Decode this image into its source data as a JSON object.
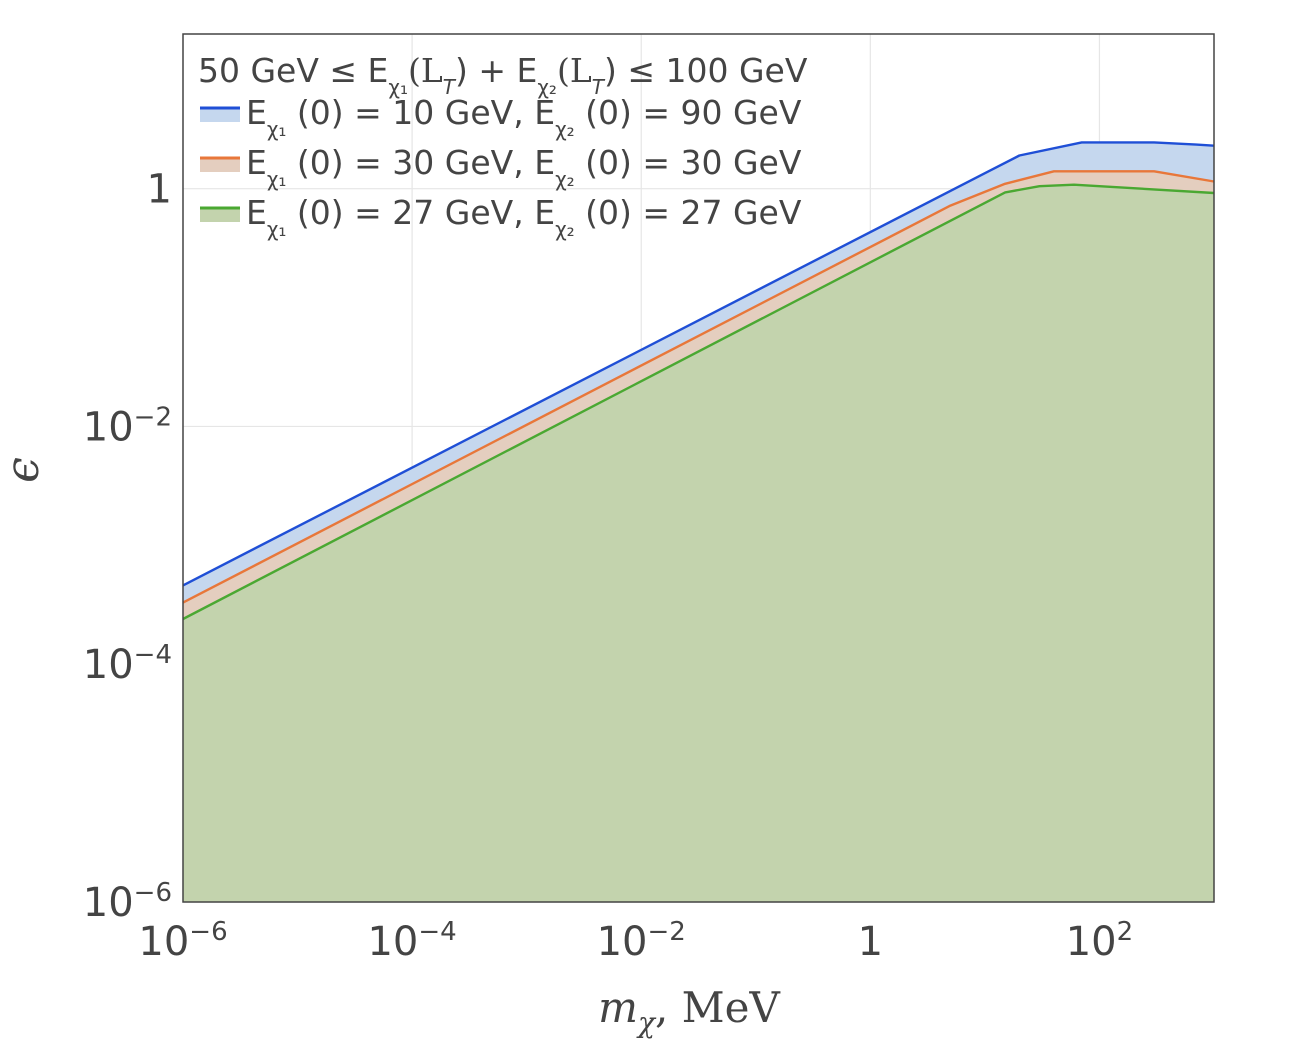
{
  "chart_data": {
    "type": "area",
    "title": "",
    "xlabel": "m_χ, MeV",
    "xlabel_parts": {
      "symbol": "m",
      "sub": "χ",
      "rest": ", MeV"
    },
    "ylabel": "ϵ",
    "x_scale": "log",
    "y_scale": "log",
    "xlim": [
      1e-06,
      1000
    ],
    "ylim": [
      1e-06,
      20
    ],
    "grid": true,
    "x_ticks": [
      {
        "value": 1e-06,
        "base": "10",
        "exp": "−6"
      },
      {
        "value": 0.0001,
        "base": "10",
        "exp": "−4"
      },
      {
        "value": 0.01,
        "base": "10",
        "exp": "−2"
      },
      {
        "value": 1,
        "base": "1",
        "exp": ""
      },
      {
        "value": 100,
        "base": "10",
        "exp": "2"
      }
    ],
    "y_ticks": [
      {
        "value": 1e-06,
        "base": "10",
        "exp": "−6"
      },
      {
        "value": 0.0001,
        "base": "10",
        "exp": "−4"
      },
      {
        "value": 0.01,
        "base": "10",
        "exp": "−2"
      },
      {
        "value": 1,
        "base": "1",
        "exp": ""
      }
    ],
    "legend": {
      "position": "top-left",
      "title_parts": {
        "prefix": "50 GeV ≤ E",
        "sub1": "χ₁",
        "mid1": "(L",
        "mid1_sub": "T",
        "mid1_end": ") + E",
        "sub2": "χ₂",
        "mid2": "(L",
        "mid2_sub": "T",
        "mid2_end": ") ≤ 100 GeV"
      }
    },
    "series": [
      {
        "name": "E_χ1 (0) = 10 GeV, E_χ2 (0) = 90 GeV",
        "label_parts": {
          "a": "E",
          "a_sub": "χ₁",
          "b": " (0) = 10 GeV, E",
          "b_sub": "χ₂",
          "c": " (0) = 90 GeV"
        },
        "color": "#1f4fd6",
        "fill": "#c5d7ee",
        "x": [
          1e-06,
          10,
          20,
          70,
          300,
          700,
          1000
        ],
        "y": [
          0.00046,
          1.35,
          1.9,
          2.45,
          2.45,
          2.35,
          2.3
        ]
      },
      {
        "name": "E_χ1 (0) = 30 GeV, E_χ2 (0) = 30 GeV",
        "label_parts": {
          "a": "E",
          "a_sub": "χ₁",
          "b": " (0) = 30 GeV, E",
          "b_sub": "χ₂",
          "c": " (0) = 30 GeV"
        },
        "color": "#e8773a",
        "fill": "#e4cebf",
        "x": [
          1e-06,
          5,
          15,
          40,
          300,
          1000
        ],
        "y": [
          0.00033,
          0.72,
          1.1,
          1.4,
          1.4,
          1.15
        ]
      },
      {
        "name": "E_χ1 (0) = 27 GeV, E_χ2 (0) = 27 GeV",
        "label_parts": {
          "a": "E",
          "a_sub": "χ₁",
          "b": " (0) = 27 GeV, E",
          "b_sub": "χ₂",
          "c": " (0) = 27 GeV"
        },
        "color": "#4aa832",
        "fill": "#c3d3ad",
        "x": [
          1e-06,
          15,
          30,
          60,
          1000
        ],
        "y": [
          0.00024,
          0.93,
          1.05,
          1.08,
          0.92
        ]
      }
    ]
  }
}
